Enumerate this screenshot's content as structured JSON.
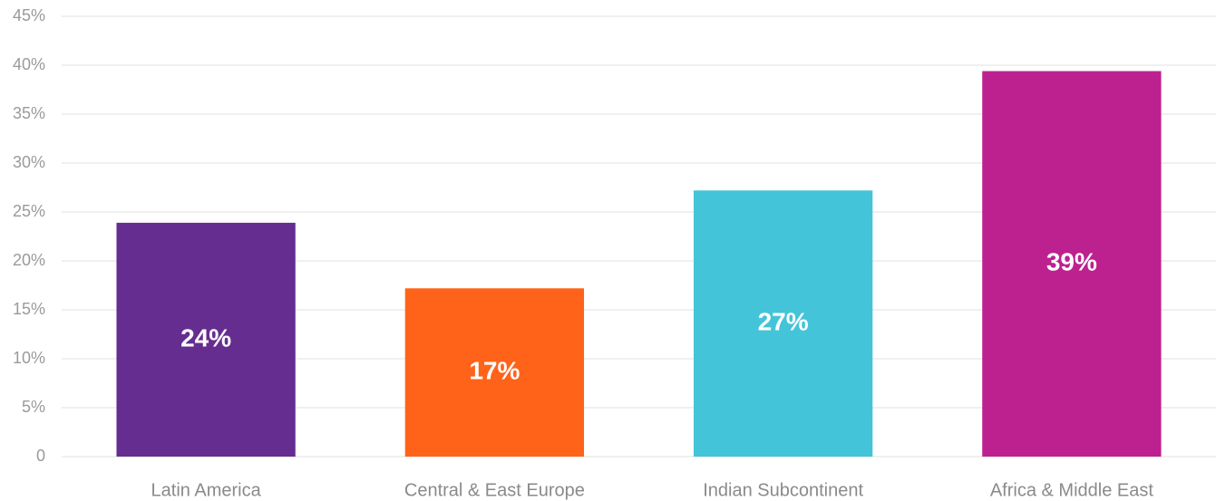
{
  "chart_data": {
    "type": "bar",
    "categories": [
      "Latin America",
      "Central & East Europe",
      "Indian Subcontinent",
      "Africa & Middle East"
    ],
    "values": [
      23.9,
      17.2,
      27.2,
      39.4
    ],
    "value_labels": [
      "24%",
      "17%",
      "27%",
      "39%"
    ],
    "colors": [
      "#652d90",
      "#ff6319",
      "#44c4d9",
      "#bd2190"
    ],
    "ylim": [
      0,
      45
    ],
    "yticks": [
      0,
      {
        "value": 5,
        "label": "5%"
      },
      {
        "value": 10,
        "label": "10%"
      },
      {
        "value": 15,
        "label": "15%"
      },
      {
        "value": 20,
        "label": "20%"
      },
      {
        "value": 25,
        "label": "25%"
      },
      {
        "value": 30,
        "label": "30%"
      },
      {
        "value": 35,
        "label": "35%"
      },
      {
        "value": 40,
        "label": "40%"
      },
      {
        "value": 45,
        "label": "45%"
      }
    ],
    "grid": true
  }
}
